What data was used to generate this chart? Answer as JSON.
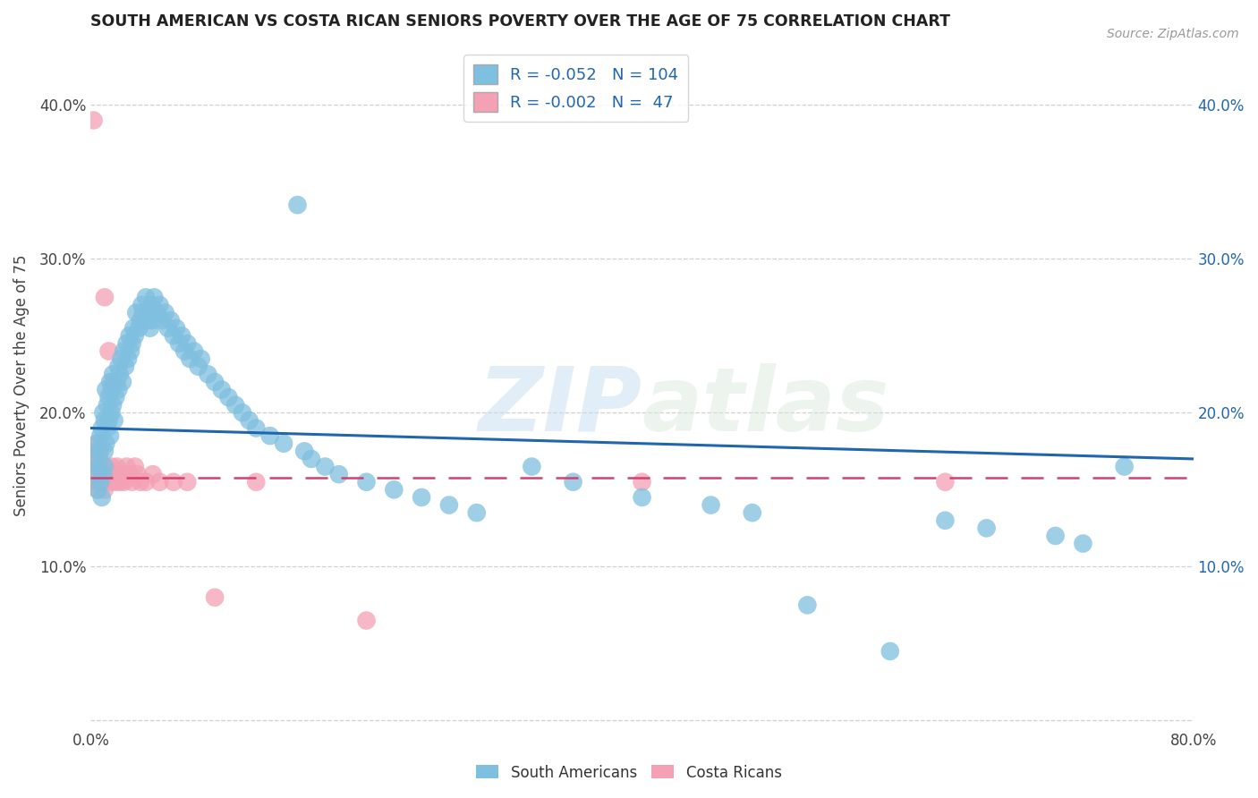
{
  "title": "SOUTH AMERICAN VS COSTA RICAN SENIORS POVERTY OVER THE AGE OF 75 CORRELATION CHART",
  "source": "Source: ZipAtlas.com",
  "ylabel": "Seniors Poverty Over the Age of 75",
  "xlim": [
    0,
    0.8
  ],
  "ylim": [
    -0.005,
    0.44
  ],
  "xticks": [
    0.0,
    0.8
  ],
  "xticklabels": [
    "0.0%",
    "80.0%"
  ],
  "yticks": [
    0.0,
    0.1,
    0.2,
    0.3,
    0.4
  ],
  "yticklabels": [
    "",
    "10.0%",
    "20.0%",
    "30.0%",
    "40.0%"
  ],
  "right_yticklabels": [
    "",
    "10.0%",
    "20.0%",
    "30.0%",
    "40.0%"
  ],
  "blue_color": "#7fbfdf",
  "pink_color": "#f4a0b5",
  "blue_line_color": "#2166ac",
  "pink_line_color": "#d44070",
  "legend_blue_R": "R = -0.052",
  "legend_blue_N": "N = 104",
  "legend_pink_R": "R = -0.002",
  "legend_pink_N": "N =  47",
  "watermark_zip": "ZIP",
  "watermark_atlas": "atlas",
  "blue_trend_x0": 0.0,
  "blue_trend_y0": 0.19,
  "blue_trend_x1": 0.8,
  "blue_trend_y1": 0.17,
  "pink_trend_x0": 0.0,
  "pink_trend_y0": 0.158,
  "pink_trend_x1": 0.8,
  "pink_trend_y1": 0.158,
  "background_color": "#ffffff",
  "grid_color": "#cccccc",
  "title_color": "#222222",
  "axis_label_color": "#444444",
  "tick_color": "#444444",
  "legend_text_color": "#2166ac",
  "sa_x": [
    0.003,
    0.004,
    0.005,
    0.005,
    0.006,
    0.006,
    0.007,
    0.007,
    0.008,
    0.008,
    0.009,
    0.009,
    0.01,
    0.01,
    0.01,
    0.011,
    0.011,
    0.012,
    0.012,
    0.013,
    0.013,
    0.014,
    0.014,
    0.015,
    0.015,
    0.016,
    0.016,
    0.017,
    0.018,
    0.019,
    0.02,
    0.02,
    0.021,
    0.022,
    0.023,
    0.024,
    0.025,
    0.026,
    0.027,
    0.028,
    0.029,
    0.03,
    0.031,
    0.032,
    0.033,
    0.035,
    0.036,
    0.037,
    0.038,
    0.04,
    0.041,
    0.042,
    0.043,
    0.044,
    0.045,
    0.046,
    0.048,
    0.05,
    0.052,
    0.054,
    0.056,
    0.058,
    0.06,
    0.062,
    0.064,
    0.066,
    0.068,
    0.07,
    0.072,
    0.075,
    0.078,
    0.08,
    0.085,
    0.09,
    0.095,
    0.1,
    0.105,
    0.11,
    0.115,
    0.12,
    0.13,
    0.14,
    0.15,
    0.155,
    0.16,
    0.17,
    0.18,
    0.2,
    0.22,
    0.24,
    0.26,
    0.28,
    0.32,
    0.35,
    0.4,
    0.45,
    0.48,
    0.52,
    0.58,
    0.62,
    0.65,
    0.7,
    0.72,
    0.75
  ],
  "sa_y": [
    0.17,
    0.16,
    0.15,
    0.18,
    0.175,
    0.165,
    0.155,
    0.185,
    0.145,
    0.19,
    0.2,
    0.16,
    0.175,
    0.165,
    0.195,
    0.18,
    0.215,
    0.19,
    0.205,
    0.195,
    0.21,
    0.185,
    0.22,
    0.2,
    0.215,
    0.205,
    0.225,
    0.195,
    0.21,
    0.22,
    0.23,
    0.215,
    0.225,
    0.235,
    0.22,
    0.24,
    0.23,
    0.245,
    0.235,
    0.25,
    0.24,
    0.245,
    0.255,
    0.25,
    0.265,
    0.255,
    0.26,
    0.27,
    0.265,
    0.275,
    0.26,
    0.265,
    0.255,
    0.27,
    0.26,
    0.275,
    0.265,
    0.27,
    0.26,
    0.265,
    0.255,
    0.26,
    0.25,
    0.255,
    0.245,
    0.25,
    0.24,
    0.245,
    0.235,
    0.24,
    0.23,
    0.235,
    0.225,
    0.22,
    0.215,
    0.21,
    0.205,
    0.2,
    0.195,
    0.19,
    0.185,
    0.18,
    0.335,
    0.175,
    0.17,
    0.165,
    0.16,
    0.155,
    0.15,
    0.145,
    0.14,
    0.135,
    0.165,
    0.155,
    0.145,
    0.14,
    0.135,
    0.075,
    0.045,
    0.13,
    0.125,
    0.12,
    0.115,
    0.165
  ],
  "cr_x": [
    0.002,
    0.003,
    0.003,
    0.004,
    0.004,
    0.005,
    0.005,
    0.005,
    0.006,
    0.006,
    0.007,
    0.007,
    0.008,
    0.008,
    0.009,
    0.009,
    0.01,
    0.01,
    0.011,
    0.012,
    0.013,
    0.014,
    0.015,
    0.016,
    0.017,
    0.018,
    0.019,
    0.02,
    0.021,
    0.022,
    0.024,
    0.026,
    0.028,
    0.03,
    0.032,
    0.034,
    0.036,
    0.04,
    0.045,
    0.05,
    0.06,
    0.07,
    0.09,
    0.12,
    0.2,
    0.4,
    0.62
  ],
  "cr_y": [
    0.39,
    0.155,
    0.17,
    0.16,
    0.18,
    0.15,
    0.165,
    0.175,
    0.155,
    0.17,
    0.16,
    0.175,
    0.155,
    0.165,
    0.155,
    0.16,
    0.15,
    0.275,
    0.165,
    0.16,
    0.24,
    0.155,
    0.165,
    0.22,
    0.16,
    0.155,
    0.165,
    0.16,
    0.155,
    0.16,
    0.155,
    0.165,
    0.16,
    0.155,
    0.165,
    0.16,
    0.155,
    0.155,
    0.16,
    0.155,
    0.155,
    0.155,
    0.08,
    0.155,
    0.065,
    0.155,
    0.155
  ]
}
